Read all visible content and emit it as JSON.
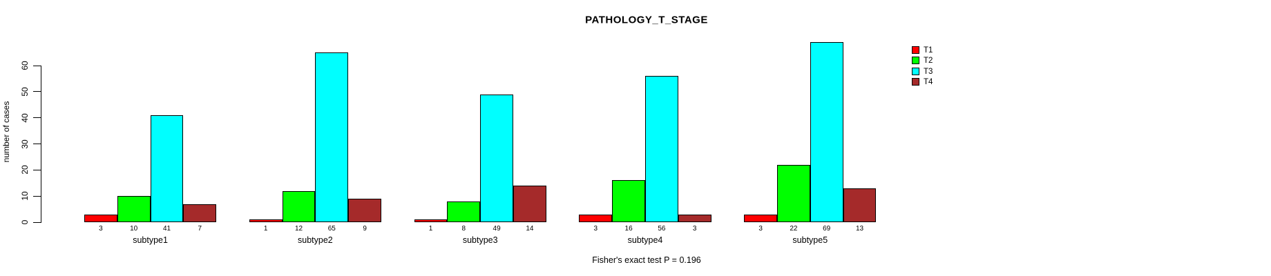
{
  "chart_data": {
    "type": "bar",
    "title": "PATHOLOGY_T_STAGE",
    "ylabel": "number of cases",
    "xlabel": "",
    "ylim": [
      0,
      60
    ],
    "yticks": [
      0,
      10,
      20,
      30,
      40,
      50,
      60
    ],
    "grid": false,
    "legend_position": "right",
    "categories": [
      "subtype1",
      "subtype2",
      "subtype3",
      "subtype4",
      "subtype5"
    ],
    "series": [
      {
        "name": "T1",
        "color": "#FF0000",
        "values": [
          3,
          1,
          1,
          3,
          3
        ]
      },
      {
        "name": "T2",
        "color": "#00FF00",
        "values": [
          10,
          12,
          8,
          16,
          22
        ]
      },
      {
        "name": "T3",
        "color": "#00FFFF",
        "values": [
          41,
          65,
          49,
          56,
          69
        ]
      },
      {
        "name": "T4",
        "color": "#A52A2A",
        "values": [
          7,
          9,
          14,
          3,
          13
        ]
      }
    ],
    "bar_value_labels_shown": true,
    "annotation": "Fisher's exact test P = 0.196"
  },
  "colors": {
    "background": "#FFFFFF",
    "text": "#000000",
    "bar_border": "#000000",
    "axis": "#000000"
  }
}
